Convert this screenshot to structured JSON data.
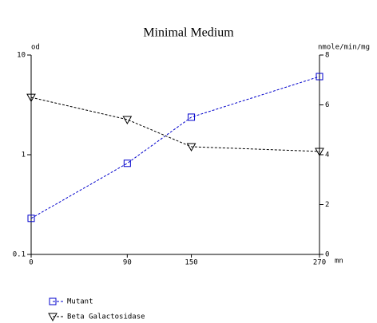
{
  "chart_data": {
    "type": "line",
    "title": "Minimal Medium",
    "y_label": "od",
    "y2_label": "nmole/min/mg",
    "x_label": "mn",
    "x": [
      0,
      90,
      150,
      270
    ],
    "xlim": [
      0,
      270
    ],
    "xticks": [
      0,
      90,
      150,
      270
    ],
    "ylim": [
      0.1,
      10
    ],
    "yticks": [
      0.1,
      1,
      10
    ],
    "ylog": true,
    "y2lim": [
      0,
      8
    ],
    "y2ticks": [
      0,
      2,
      4,
      6,
      8
    ],
    "series": [
      {
        "name": "Mutant",
        "color": "#0000cc",
        "marker": "square",
        "values": [
          0.23,
          0.82,
          2.38,
          6.08
        ]
      },
      {
        "name": "Beta Galactosidase",
        "color": "#000000",
        "marker": "triangle-down",
        "axis": "y2",
        "values": [
          6.3,
          5.41,
          4.32,
          4.13
        ]
      }
    ]
  }
}
